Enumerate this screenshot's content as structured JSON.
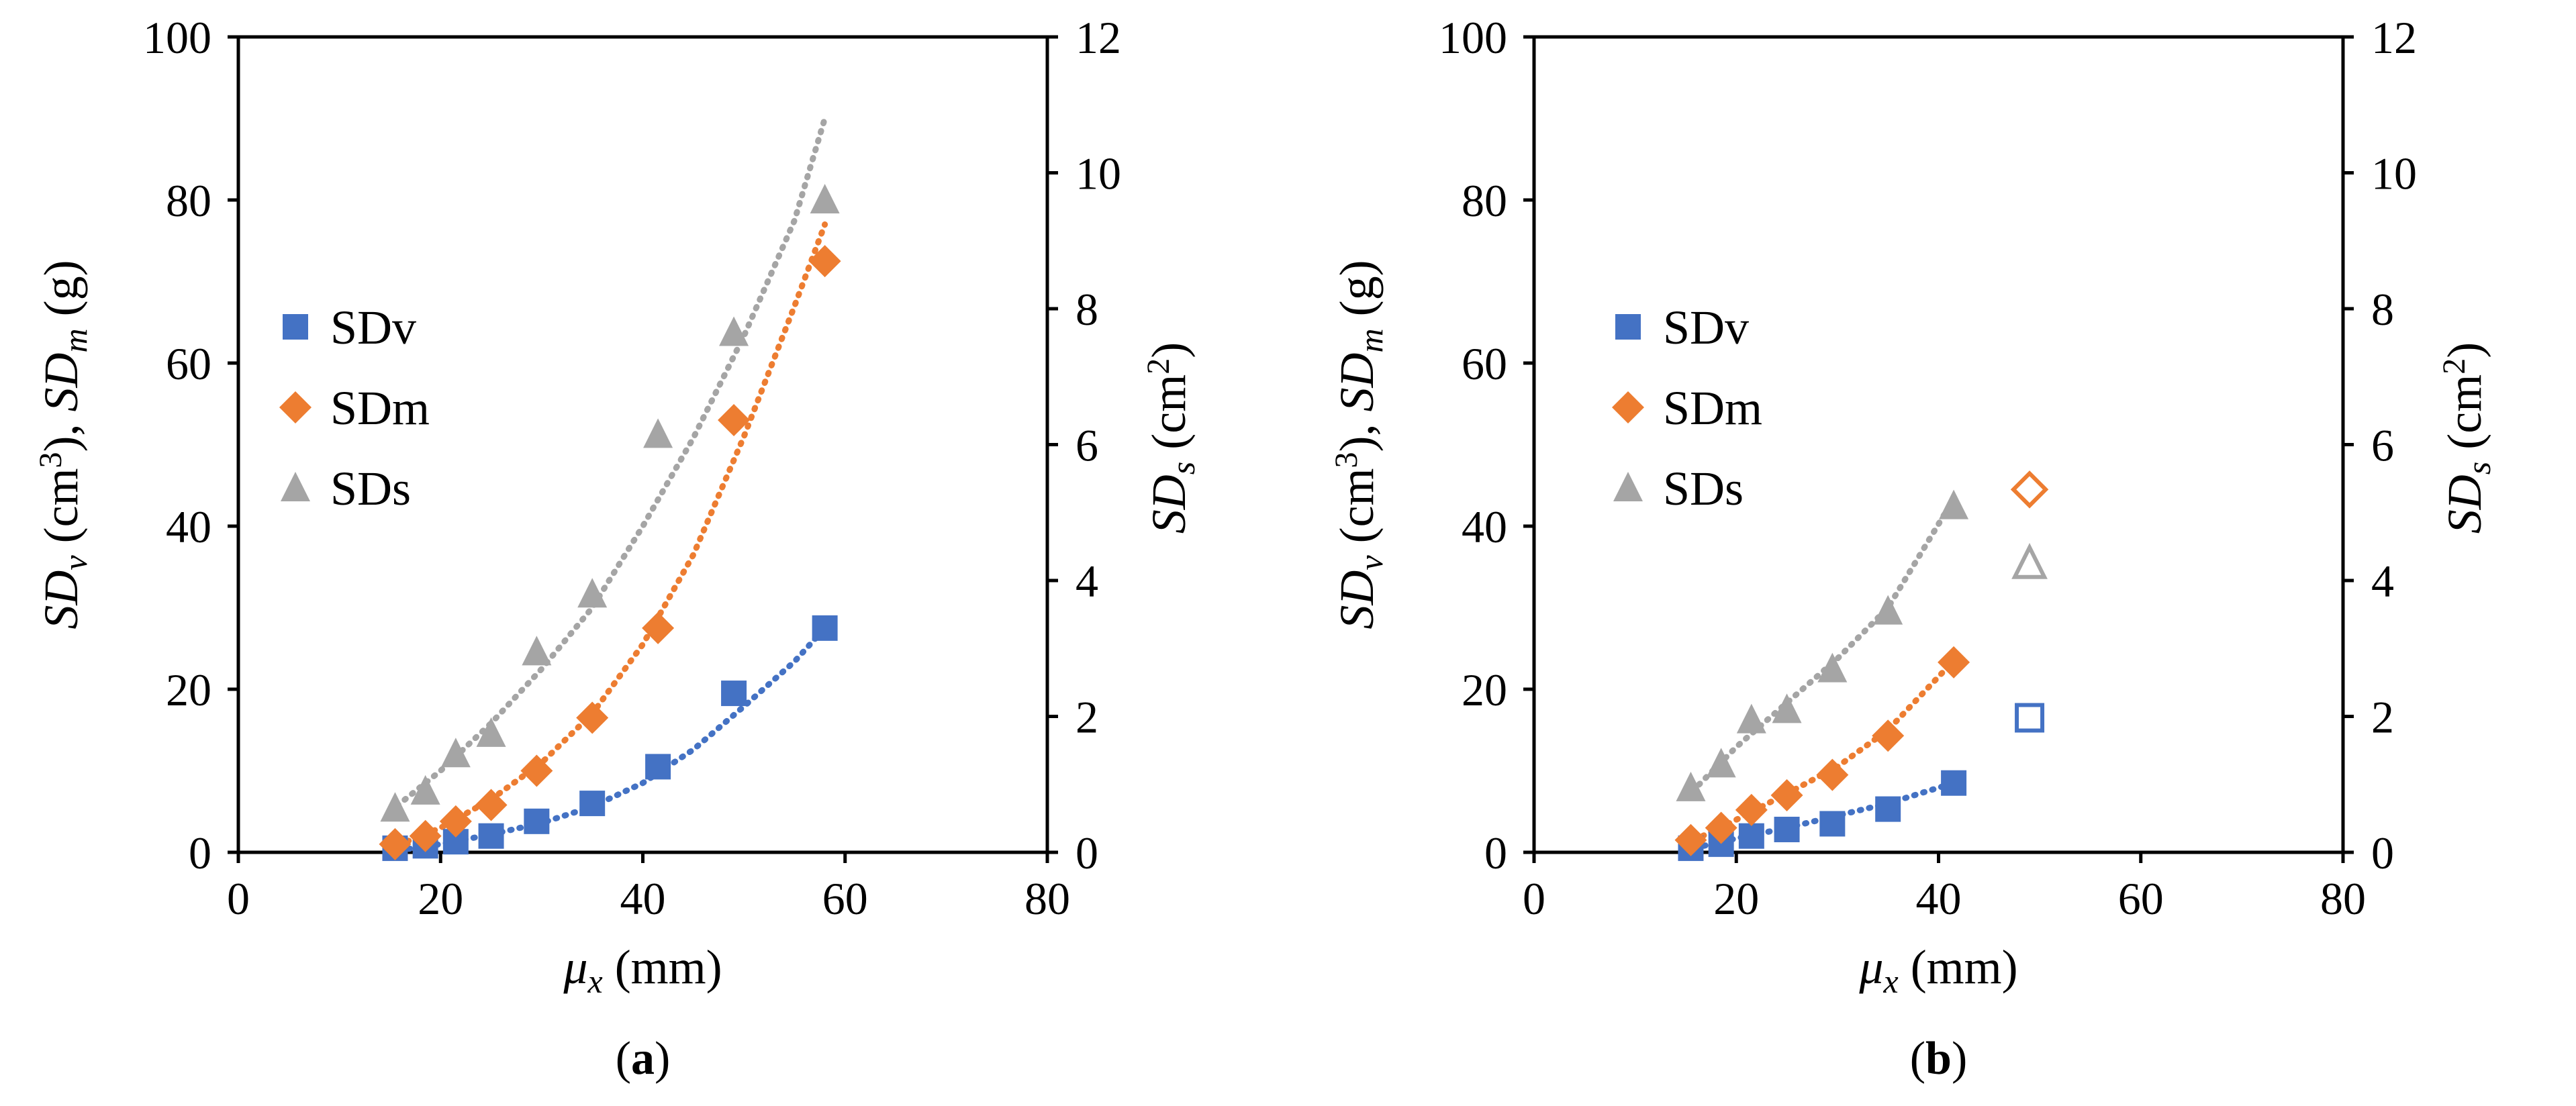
{
  "colors": {
    "SDv": "#4472C4",
    "SDm": "#ED7D31",
    "SDs": "#A5A5A5"
  },
  "chart_data": [
    {
      "type": "scatter",
      "panel_label": "(a)",
      "panel_letter": "a",
      "x_axis": {
        "label_symbol": "μ",
        "label_sub": "x",
        "label_unit": " (mm)",
        "range": [
          0,
          80
        ],
        "ticks": [
          "0",
          "20",
          "40",
          "60",
          "80"
        ]
      },
      "y_left": {
        "label": "SDv (cm3), SDm (g)",
        "range": [
          0,
          100
        ],
        "ticks": [
          "0",
          "20",
          "40",
          "60",
          "80",
          "100"
        ]
      },
      "y_right": {
        "label": "SDs (cm2)",
        "range": [
          0,
          12
        ],
        "ticks": [
          "0",
          "2",
          "4",
          "6",
          "8",
          "10",
          "12"
        ]
      },
      "legend": [
        "SDv",
        "SDm",
        "SDs"
      ],
      "legend_position": "left-middle",
      "series": [
        {
          "name": "SDv",
          "axis": "left",
          "marker": "square",
          "x": [
            15.5,
            18.5,
            21.5,
            25,
            29.5,
            35,
            41.5,
            49,
            58
          ],
          "y": [
            0.5,
            0.8,
            1.3,
            2,
            3.8,
            6,
            10.5,
            19.5,
            27.5
          ]
        },
        {
          "name": "SDm",
          "axis": "left",
          "marker": "diamond",
          "x": [
            15.5,
            18.5,
            21.5,
            25,
            29.5,
            35,
            41.5,
            49,
            58
          ],
          "y": [
            1,
            2,
            3.8,
            5.8,
            10,
            16.5,
            27.5,
            53,
            72.5
          ]
        },
        {
          "name": "SDs",
          "axis": "right",
          "marker": "triangle",
          "x": [
            15.5,
            18.5,
            21.5,
            25,
            29.5,
            35,
            41.5,
            49,
            58
          ],
          "y": [
            0.65,
            0.9,
            1.45,
            1.75,
            2.95,
            3.8,
            6.15,
            7.65,
            9.6
          ]
        }
      ],
      "trendlines": [
        {
          "name": "SDv",
          "axis": "left",
          "x": [
            15,
            20,
            25,
            30,
            35,
            40,
            45,
            50,
            55,
            58
          ],
          "y": [
            0.1,
            1,
            2.2,
            3.6,
            5.6,
            8.5,
            12.6,
            17.9,
            23.4,
            27.5
          ]
        },
        {
          "name": "SDm",
          "axis": "left",
          "x": [
            15,
            20,
            25,
            30,
            35,
            40,
            45,
            50,
            55,
            58
          ],
          "y": [
            0.5,
            3,
            6.5,
            11,
            17,
            25.5,
            36.5,
            51,
            67,
            77
          ]
        },
        {
          "name": "SDs",
          "axis": "right",
          "x": [
            15,
            20,
            25,
            30,
            35,
            40,
            45,
            50,
            55,
            58
          ],
          "y": [
            0.6,
            1.2,
            1.9,
            2.7,
            3.6,
            4.8,
            6.1,
            7.6,
            9.3,
            10.8
          ]
        }
      ]
    },
    {
      "type": "scatter",
      "panel_label": "(b)",
      "panel_letter": "b",
      "x_axis": {
        "label_symbol": "μ",
        "label_sub": "x",
        "label_unit": " (mm)",
        "range": [
          0,
          80
        ],
        "ticks": [
          "0",
          "20",
          "40",
          "60",
          "80"
        ]
      },
      "y_left": {
        "label": "SDv (cm3), SDm (g)",
        "range": [
          0,
          100
        ],
        "ticks": [
          "0",
          "20",
          "40",
          "60",
          "80",
          "100"
        ]
      },
      "y_right": {
        "label": "SDs (cm2)",
        "range": [
          0,
          12
        ],
        "ticks": [
          "0",
          "2",
          "4",
          "6",
          "8",
          "10",
          "12"
        ]
      },
      "legend": [
        "SDv",
        "SDm",
        "SDs"
      ],
      "legend_position": "left-middle",
      "series": [
        {
          "name": "SDv",
          "axis": "left",
          "marker": "square",
          "x": [
            15.5,
            18.5,
            21.5,
            25,
            29.5,
            35,
            41.5
          ],
          "y": [
            0.5,
            1,
            2,
            2.8,
            3.5,
            5.3,
            8.5
          ]
        },
        {
          "name": "SDm",
          "axis": "left",
          "marker": "diamond",
          "x": [
            15.5,
            18.5,
            21.5,
            25,
            29.5,
            35,
            41.5
          ],
          "y": [
            1.5,
            3,
            5.2,
            7,
            9.5,
            14.3,
            23.3
          ]
        },
        {
          "name": "SDs",
          "axis": "right",
          "marker": "triangle",
          "x": [
            15.5,
            18.5,
            21.5,
            25,
            29.5,
            35,
            41.5
          ],
          "y": [
            0.95,
            1.3,
            1.95,
            2.1,
            2.7,
            3.55,
            5.1
          ]
        }
      ],
      "outliers": [
        {
          "name": "SDv",
          "axis": "left",
          "marker": "square",
          "x": 49,
          "y": 16.5
        },
        {
          "name": "SDm",
          "axis": "left",
          "marker": "diamond",
          "x": 49,
          "y": 44.5
        },
        {
          "name": "SDs",
          "axis": "right",
          "marker": "triangle",
          "x": 49,
          "y": 4.25
        }
      ],
      "trendlines": [
        {
          "name": "SDv",
          "axis": "left",
          "x": [
            15,
            20,
            25,
            30,
            35,
            41.5
          ],
          "y": [
            0.3,
            1.7,
            3,
            4.5,
            6,
            8.5
          ]
        },
        {
          "name": "SDm",
          "axis": "left",
          "x": [
            15,
            20,
            25,
            30,
            35,
            41.5
          ],
          "y": [
            1,
            4,
            7.2,
            10.5,
            15,
            23.5
          ]
        },
        {
          "name": "SDs",
          "axis": "right",
          "x": [
            15,
            20,
            25,
            30,
            35,
            41.5
          ],
          "y": [
            0.8,
            1.55,
            2.2,
            2.85,
            3.6,
            5.2
          ]
        }
      ]
    }
  ]
}
